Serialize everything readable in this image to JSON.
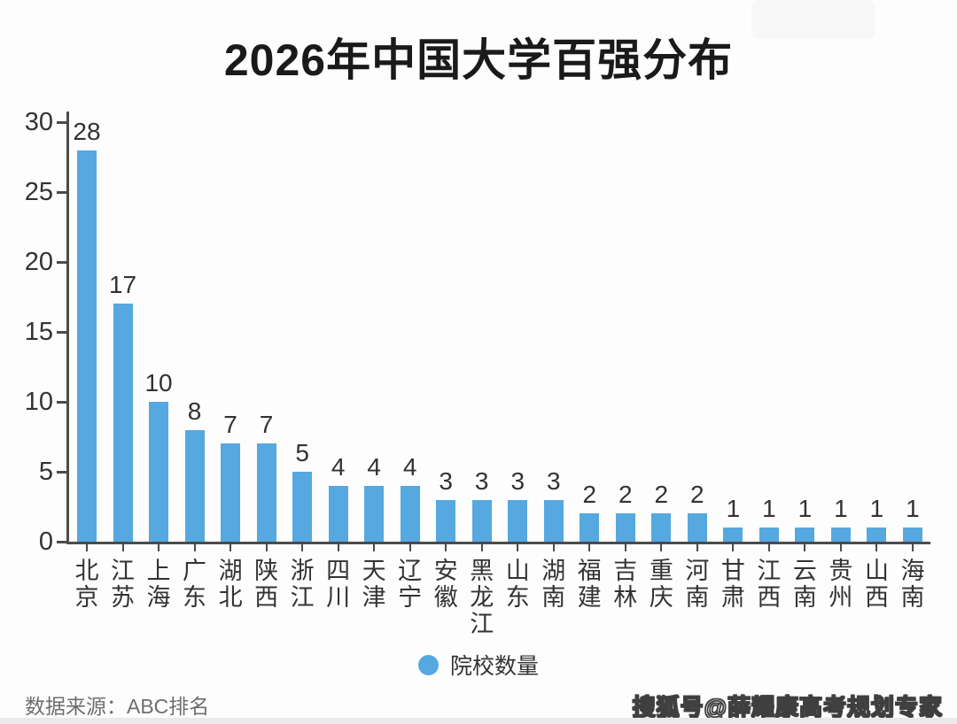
{
  "title": "2026年中国大学百强分布",
  "chart_data": {
    "type": "bar",
    "title": "2026年中国大学百强分布",
    "categories": [
      "北京",
      "江苏",
      "上海",
      "广东",
      "湖北",
      "陕西",
      "浙江",
      "四川",
      "天津",
      "辽宁",
      "安徽",
      "黑龙江",
      "山东",
      "湖南",
      "福建",
      "吉林",
      "重庆",
      "河南",
      "甘肃",
      "江西",
      "云南",
      "贵州",
      "山西",
      "海南"
    ],
    "values": [
      28,
      17,
      10,
      8,
      7,
      7,
      5,
      4,
      4,
      4,
      3,
      3,
      3,
      3,
      2,
      2,
      2,
      2,
      1,
      1,
      1,
      1,
      1,
      1
    ],
    "xlabel": "",
    "ylabel": "",
    "ylim": [
      0,
      30
    ],
    "yticks": [
      0,
      5,
      10,
      15,
      20,
      25,
      30
    ],
    "grid": false,
    "data_labels": true,
    "legend_position": "bottom",
    "bar_color": "#56a8e0"
  },
  "legend": {
    "label": "院校数量"
  },
  "footer": {
    "source_label": "数据来源：ABC排名",
    "watermark": "搜狐号@薛耀康高考规划专家"
  },
  "colors": {
    "bar": "#56a8e0",
    "axis": "#4b4b4b",
    "label": "#333333",
    "title": "#1a1a1a",
    "source": "#6e6e6e",
    "strip": "#e9e9e9",
    "background": "#fdfdfd"
  }
}
